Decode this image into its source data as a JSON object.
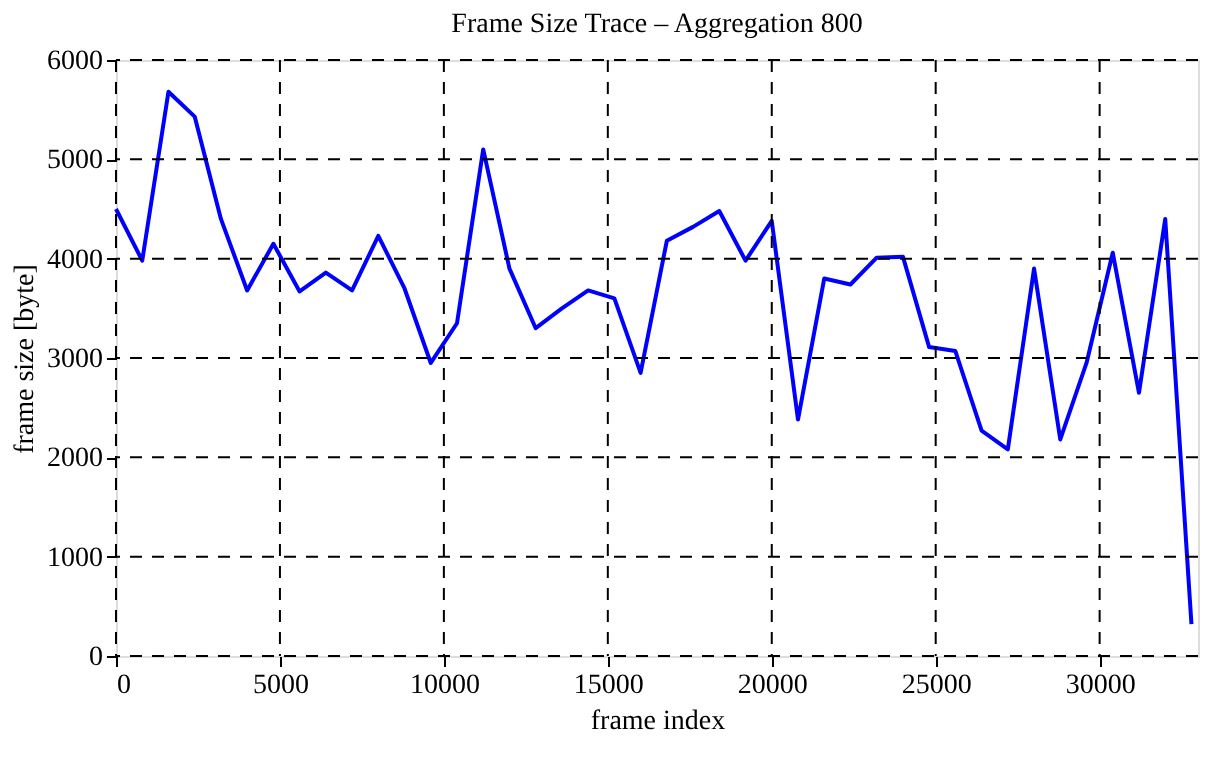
{
  "chart_data": {
    "type": "line",
    "title": "Frame Size Trace – Aggregation 800",
    "xlabel": "frame index",
    "ylabel": "frame size [byte]",
    "x": [
      0,
      800,
      1600,
      2400,
      3200,
      4000,
      4800,
      5600,
      6400,
      7200,
      8000,
      8800,
      9600,
      10400,
      11200,
      12000,
      12800,
      13600,
      14400,
      15200,
      16000,
      16800,
      17600,
      18400,
      19200,
      20000,
      20800,
      21600,
      22400,
      23200,
      24000,
      24800,
      25600,
      26400,
      27200,
      28000,
      28800,
      29600,
      30400,
      31200,
      32000,
      32800
    ],
    "series": [
      {
        "color": "#0000ff",
        "values": [
          4500,
          3980,
          5680,
          5430,
          4400,
          3680,
          4150,
          3670,
          3860,
          3680,
          4230,
          3700,
          2950,
          3350,
          5100,
          3900,
          3300,
          3500,
          3680,
          3600,
          2850,
          4180,
          4320,
          4480,
          3980,
          4380,
          2380,
          3800,
          3740,
          4010,
          4020,
          3110,
          3070,
          2270,
          2080,
          3900,
          2180,
          2950,
          4060,
          2650,
          4400,
          320
        ]
      }
    ],
    "xlim": [
      0,
      33000
    ],
    "xticks": [
      0,
      5000,
      10000,
      15000,
      20000,
      25000,
      30000
    ],
    "ylim": [
      0,
      6000
    ],
    "yticks": [
      0,
      1000,
      2000,
      3000,
      4000,
      5000,
      6000
    ],
    "grid": true,
    "line_style": "solid",
    "marker": "none",
    "legend": false
  }
}
